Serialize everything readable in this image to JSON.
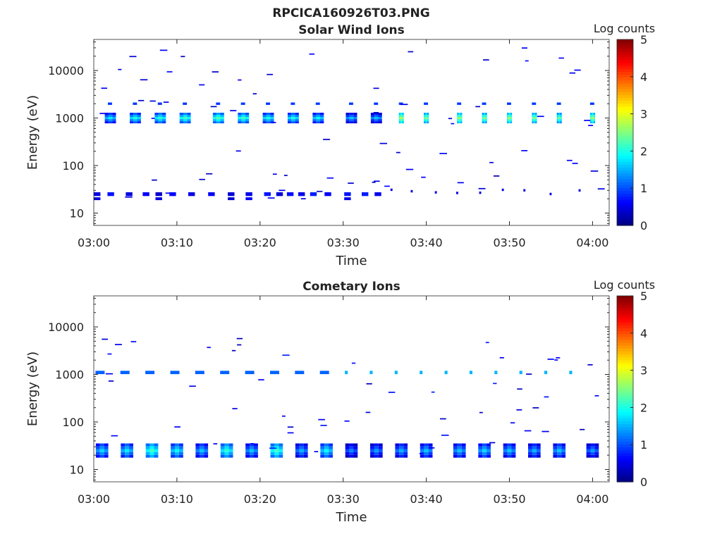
{
  "figure_title": "RPCICA160926T03.PNG",
  "colorbar_ticks": [
    "0",
    "1",
    "2",
    "3",
    "4",
    "5"
  ],
  "chart_data": [
    {
      "type": "heatmap",
      "title": "Solar Wind Ions",
      "xlabel": "Time",
      "ylabel": "Energy (eV)",
      "y_scale": "log",
      "ylim": [
        5.5,
        45000
      ],
      "xlim": [
        "03:00",
        "04:02"
      ],
      "x_ticks": [
        "03:00",
        "03:10",
        "03:20",
        "03:30",
        "03:40",
        "03:50",
        "04:00"
      ],
      "y_ticks": [
        "10",
        "100",
        "1000",
        "10000"
      ],
      "colorbar_label": "Log counts",
      "colorbar_range": [
        0,
        5
      ],
      "grid": false,
      "pattern": {
        "solar_wind_band": {
          "energy_eV": 1000,
          "blobs": [
            {
              "time": "03:02",
              "peak": 1.8
            },
            {
              "time": "03:05",
              "peak": 2.0
            },
            {
              "time": "03:08",
              "peak": 2.1
            },
            {
              "time": "03:11",
              "peak": 2.2
            },
            {
              "time": "03:15",
              "peak": 2.3
            },
            {
              "time": "03:18",
              "peak": 2.2
            },
            {
              "time": "03:21",
              "peak": 2.0
            },
            {
              "time": "03:24",
              "peak": 2.0
            },
            {
              "time": "03:27",
              "peak": 1.9
            },
            {
              "time": "03:31",
              "peak": 1.6
            },
            {
              "time": "03:34",
              "peak": 1.6
            },
            {
              "time": "03:37",
              "peak": 2.8
            },
            {
              "time": "03:40",
              "peak": 2.6
            },
            {
              "time": "03:44",
              "peak": 2.7
            },
            {
              "time": "03:47",
              "peak": 2.6
            },
            {
              "time": "03:50",
              "peak": 2.7
            },
            {
              "time": "03:53",
              "peak": 2.6
            },
            {
              "time": "03:56",
              "peak": 2.5
            },
            {
              "time": "04:00",
              "peak": 2.7
            }
          ]
        },
        "low_energy_band": {
          "energy_eV": 25,
          "time_range": [
            "03:00",
            "03:34"
          ],
          "level": 0.5
        }
      }
    },
    {
      "type": "heatmap",
      "title": "Cometary Ions",
      "xlabel": "Time",
      "ylabel": "Energy (eV)",
      "y_scale": "log",
      "ylim": [
        5.5,
        45000
      ],
      "xlim": [
        "03:00",
        "04:02"
      ],
      "x_ticks": [
        "03:00",
        "03:10",
        "03:20",
        "03:30",
        "03:40",
        "03:50",
        "04:00"
      ],
      "y_ticks": [
        "10",
        "100",
        "1000",
        "10000"
      ],
      "colorbar_label": "Log counts",
      "colorbar_range": [
        0,
        5
      ],
      "grid": false,
      "pattern": {
        "high_energy_band": {
          "energy_eV": 1100,
          "time_range": [
            "03:00",
            "04:00"
          ],
          "level": 1.1
        },
        "low_energy_band": {
          "energy_eV": 25,
          "blobs": [
            {
              "time": "03:01",
              "peak": 1.7
            },
            {
              "time": "03:04",
              "peak": 1.8
            },
            {
              "time": "03:07",
              "peak": 2.2
            },
            {
              "time": "03:10",
              "peak": 1.9
            },
            {
              "time": "03:13",
              "peak": 1.6
            },
            {
              "time": "03:16",
              "peak": 2.1
            },
            {
              "time": "03:19",
              "peak": 1.6
            },
            {
              "time": "03:22",
              "peak": 2.2
            },
            {
              "time": "03:25",
              "peak": 1.5
            },
            {
              "time": "03:28",
              "peak": 1.9
            },
            {
              "time": "03:31",
              "peak": 1.3
            },
            {
              "time": "03:34",
              "peak": 1.4
            },
            {
              "time": "03:37",
              "peak": 1.5
            },
            {
              "time": "03:40",
              "peak": 1.6
            },
            {
              "time": "03:44",
              "peak": 1.6
            },
            {
              "time": "03:47",
              "peak": 1.7
            },
            {
              "time": "03:50",
              "peak": 1.6
            },
            {
              "time": "03:53",
              "peak": 1.5
            },
            {
              "time": "03:56",
              "peak": 1.6
            },
            {
              "time": "04:00",
              "peak": 1.4
            }
          ]
        }
      }
    }
  ]
}
